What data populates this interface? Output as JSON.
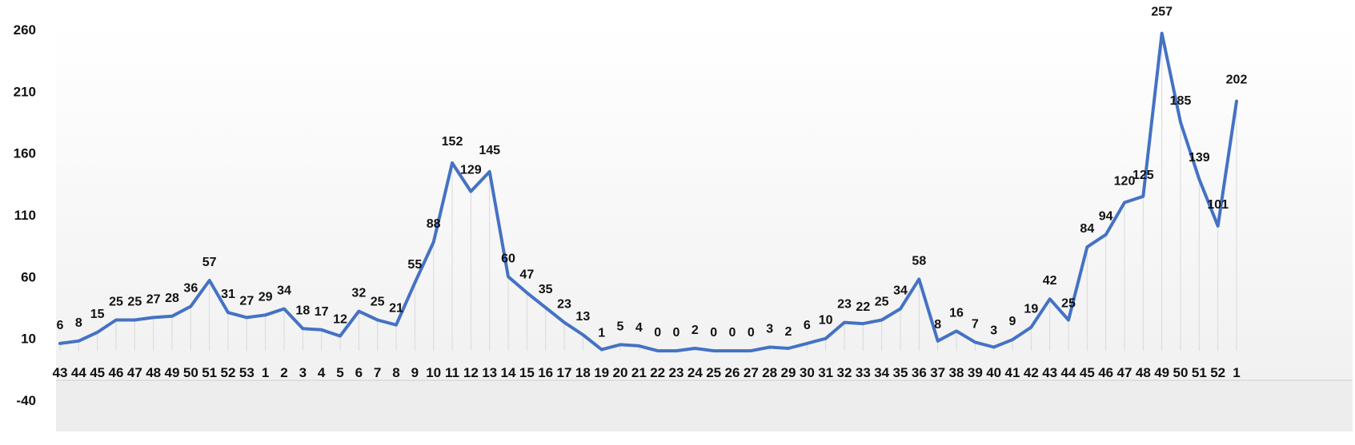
{
  "chart_data": {
    "type": "area",
    "categories": [
      "43",
      "44",
      "45",
      "46",
      "47",
      "48",
      "49",
      "50",
      "51",
      "52",
      "53",
      "1",
      "2",
      "3",
      "4",
      "5",
      "6",
      "7",
      "8",
      "9",
      "10",
      "11",
      "12",
      "13",
      "14",
      "15",
      "16",
      "17",
      "18",
      "19",
      "20",
      "21",
      "22",
      "23",
      "24",
      "25",
      "26",
      "27",
      "28",
      "29",
      "30",
      "31",
      "32",
      "33",
      "34",
      "35",
      "36",
      "37",
      "38",
      "39",
      "40",
      "41",
      "42",
      "43",
      "44",
      "45",
      "46",
      "47",
      "48",
      "49",
      "50",
      "51",
      "52",
      "1"
    ],
    "series": [
      {
        "values": [
          6,
          8,
          15,
          25,
          25,
          27,
          28,
          36,
          57,
          31,
          27,
          29,
          34,
          18,
          17,
          12,
          32,
          25,
          21,
          55,
          88,
          152,
          129,
          145,
          60,
          47,
          35,
          23,
          13,
          1,
          5,
          4,
          0,
          0,
          2,
          0,
          0,
          0,
          3,
          2,
          6,
          10,
          23,
          22,
          25,
          34,
          58,
          8,
          16,
          7,
          3,
          9,
          19,
          42,
          25,
          84,
          94,
          120,
          125,
          257,
          185,
          139,
          101,
          202
        ]
      }
    ],
    "data_labels": [
      "6",
      "8",
      "15",
      "25",
      "25",
      "27",
      "28",
      "36",
      "57",
      "31",
      "27",
      "29",
      "34",
      "18",
      "17",
      "12",
      "32",
      "25",
      "21",
      "55",
      "88",
      "152",
      "129",
      "145",
      "60",
      "47",
      "35",
      "23",
      "13",
      "1",
      "5",
      "4",
      "0",
      "0",
      "2",
      "0",
      "0",
      "0",
      "3",
      "2",
      "6",
      "10",
      "23",
      "22",
      "25",
      "34",
      "58",
      "8",
      "16",
      "7",
      "3",
      "9",
      "19",
      "42",
      "25",
      "84",
      "94",
      "120",
      "125",
      "257",
      "185",
      "139",
      "101",
      "202"
    ],
    "yticks": [
      "260",
      "210",
      "160",
      "110",
      "60",
      "10",
      "-40"
    ],
    "ylim": [
      -40,
      260
    ],
    "grid": "vertical drop lines",
    "legend": "none",
    "colors": {
      "line": "#4472C4",
      "droplines": "#d9d9d9",
      "leader": "#a6a6a6",
      "axis": "#d9d9d9"
    }
  }
}
